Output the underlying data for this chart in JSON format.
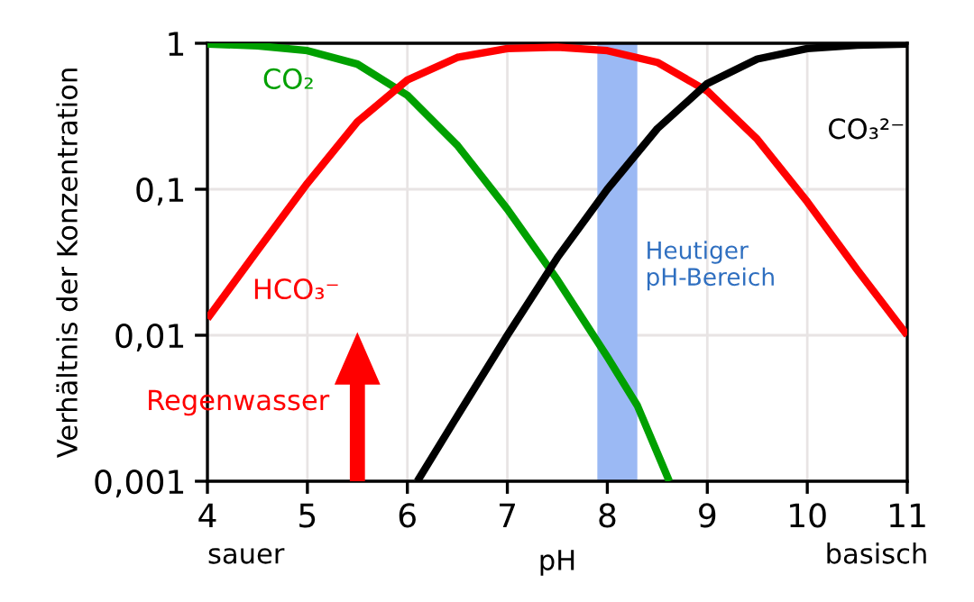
{
  "chart_data": {
    "type": "line",
    "xlabel": "pH",
    "ylabel": "Verhältnis der Konzentration",
    "log": "y",
    "grid": true,
    "legend": false,
    "line_style": "solid",
    "marker": "none",
    "xlim": [
      4,
      11
    ],
    "xticks": [
      4,
      5,
      6,
      7,
      8,
      9,
      10,
      11
    ],
    "ylim": [
      0.001,
      1
    ],
    "yticks": [
      {
        "value": 0.001,
        "label": "0,001"
      },
      {
        "value": 0.01,
        "label": "0,01"
      },
      {
        "value": 0.1,
        "label": "0,1"
      },
      {
        "value": 1,
        "label": "1"
      }
    ],
    "series": [
      {
        "name": "CO₂",
        "color": "#00a000",
        "x": [
          4,
          4.5,
          5,
          5.5,
          6,
          6.5,
          7,
          7.5,
          8,
          8.3,
          8.62
        ],
        "values": [
          0.99,
          0.96,
          0.89,
          0.72,
          0.44,
          0.2,
          0.073,
          0.024,
          0.0071,
          0.0033,
          0.001
        ]
      },
      {
        "name": "HCO₃⁻",
        "color": "#ff0000",
        "x": [
          4,
          4.5,
          5,
          5.5,
          6,
          6.5,
          7,
          7.5,
          8,
          8.5,
          9,
          9.5,
          10,
          10.5,
          11
        ],
        "values": [
          0.013,
          0.038,
          0.11,
          0.29,
          0.56,
          0.8,
          0.92,
          0.94,
          0.89,
          0.74,
          0.47,
          0.22,
          0.082,
          0.028,
          0.01
        ]
      },
      {
        "name": "CO₃²⁻",
        "color": "#000000",
        "x": [
          6.1,
          6.5,
          7,
          7.5,
          8,
          8.5,
          9,
          9.5,
          10,
          10.5,
          11
        ],
        "values": [
          0.001,
          0.0028,
          0.01,
          0.034,
          0.1,
          0.26,
          0.53,
          0.78,
          0.92,
          0.97,
          0.99
        ]
      }
    ],
    "bands": [
      {
        "axis": "x",
        "from": 7.9,
        "to": 8.3,
        "label": "Heutiger pH-Bereich",
        "color": "#9bb9f4"
      }
    ],
    "annotations": [
      "Regenwasser",
      "sauer",
      "basisch"
    ]
  }
}
